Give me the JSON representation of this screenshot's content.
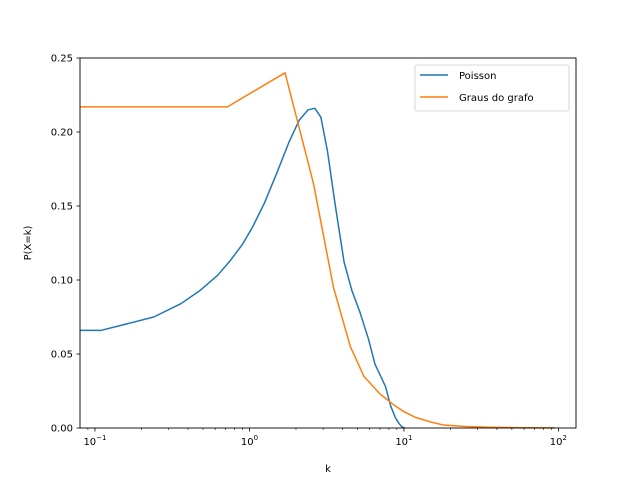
{
  "chart_data": {
    "type": "line",
    "xlabel": "k",
    "ylabel": "P(X=k)",
    "xscale": "log",
    "xlim": [
      0.08,
      130
    ],
    "ylim": [
      0,
      0.25
    ],
    "xticks": [
      {
        "value": 0.1,
        "base": "10",
        "exp": "−1"
      },
      {
        "value": 1,
        "base": "10",
        "exp": "0"
      },
      {
        "value": 10,
        "base": "10",
        "exp": "1"
      },
      {
        "value": 100,
        "base": "10",
        "exp": "2"
      }
    ],
    "yticks": [
      {
        "value": 0.0,
        "label": "0.00"
      },
      {
        "value": 0.05,
        "label": "0.05"
      },
      {
        "value": 0.1,
        "label": "0.10"
      },
      {
        "value": 0.15,
        "label": "0.15"
      },
      {
        "value": 0.2,
        "label": "0.20"
      },
      {
        "value": 0.25,
        "label": "0.25"
      }
    ],
    "legend_position": "top-right",
    "grid": false,
    "series": [
      {
        "name": "Poisson",
        "color": "#1f77b4",
        "x": [
          0.08,
          0.11,
          0.17,
          0.24,
          0.36,
          0.48,
          0.62,
          0.75,
          0.9,
          1.05,
          1.25,
          1.5,
          1.8,
          2.1,
          2.4,
          2.65,
          2.9,
          3.2,
          3.6,
          4.1,
          4.6,
          5.2,
          5.9,
          6.5,
          7.0,
          7.6,
          8.2,
          8.8,
          9.3,
          9.7,
          10.1
        ],
        "y": [
          0.066,
          0.066,
          0.071,
          0.075,
          0.084,
          0.093,
          0.103,
          0.113,
          0.124,
          0.136,
          0.152,
          0.172,
          0.193,
          0.208,
          0.215,
          0.216,
          0.21,
          0.187,
          0.15,
          0.112,
          0.093,
          0.078,
          0.06,
          0.043,
          0.036,
          0.028,
          0.015,
          0.007,
          0.003,
          0.0008,
          0.0
        ]
      },
      {
        "name": "Graus do grafo",
        "color": "#ff7f0e",
        "x": [
          0.08,
          0.72,
          1.7,
          2.6,
          3.5,
          4.5,
          5.5,
          7.0,
          8.5,
          10.0,
          12.0,
          15.0,
          18.0,
          25.0,
          35.0,
          60.0,
          95.0
        ],
        "y": [
          0.217,
          0.217,
          0.24,
          0.165,
          0.095,
          0.055,
          0.035,
          0.023,
          0.016,
          0.011,
          0.007,
          0.004,
          0.002,
          0.001,
          0.0005,
          0.0002,
          0.0001
        ]
      }
    ]
  }
}
